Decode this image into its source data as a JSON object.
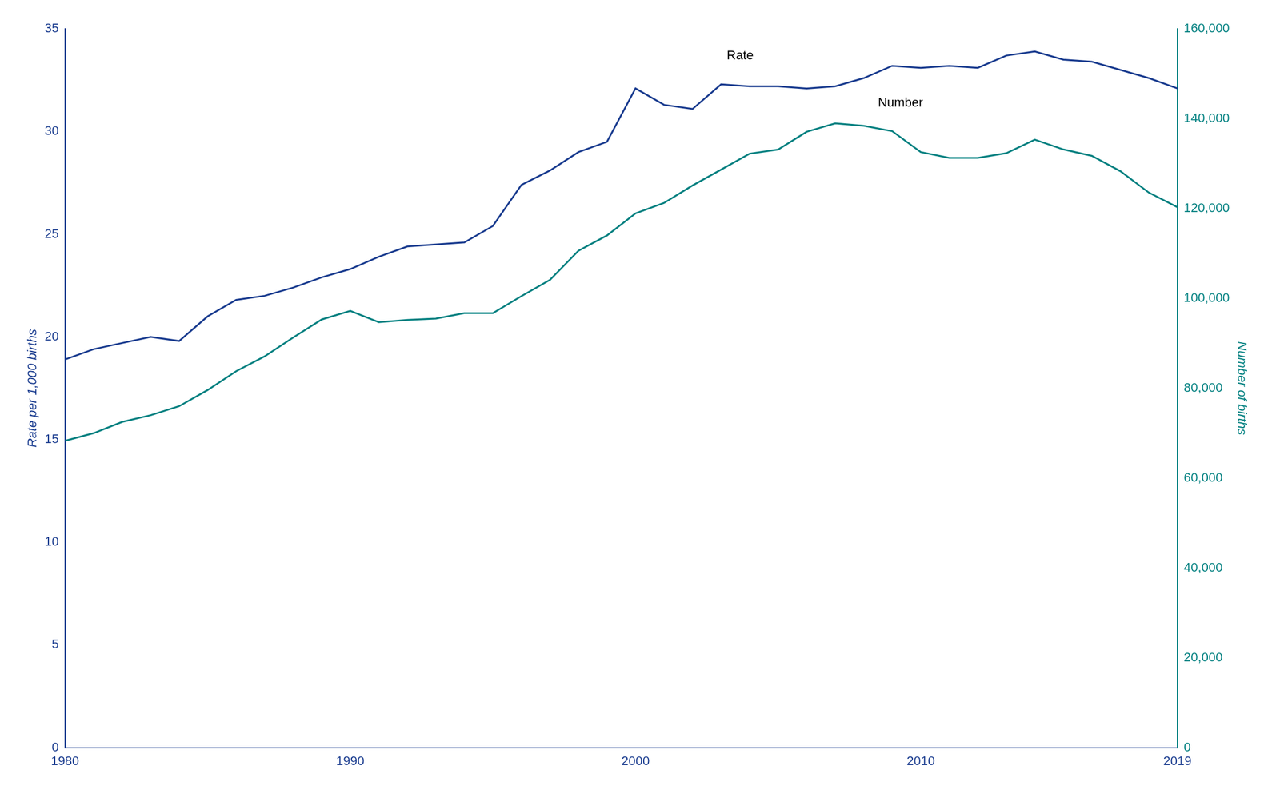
{
  "chart_data": {
    "type": "line",
    "ylabel": "Rate per 1,000 births",
    "y2label": "Number of births",
    "x": [
      1980,
      1981,
      1982,
      1983,
      1984,
      1985,
      1986,
      1987,
      1988,
      1989,
      1990,
      1991,
      1992,
      1993,
      1994,
      1995,
      1996,
      1997,
      1998,
      1999,
      2000,
      2001,
      2002,
      2003,
      2004,
      2005,
      2006,
      2007,
      2008,
      2009,
      2010,
      2011,
      2012,
      2013,
      2014,
      2015,
      2016,
      2017,
      2018,
      2019
    ],
    "series": [
      {
        "name": "Rate",
        "color": "#1a3c8f",
        "axis": "y",
        "values": [
          18.9,
          19.4,
          19.7,
          20.0,
          19.8,
          21.0,
          21.8,
          22.0,
          22.4,
          22.9,
          23.3,
          23.9,
          24.4,
          24.5,
          24.6,
          25.4,
          27.4,
          28.1,
          29.0,
          29.5,
          32.1,
          31.3,
          31.1,
          32.3,
          32.2,
          32.2,
          32.1,
          32.2,
          32.6,
          33.2,
          33.1,
          33.2,
          33.1,
          33.7,
          33.9,
          33.5,
          33.4,
          33.0,
          32.6,
          32.1
        ]
      },
      {
        "name": "Number",
        "color": "#008080",
        "axis": "y2",
        "values": [
          68300,
          70000,
          72500,
          74000,
          76000,
          79600,
          83800,
          87100,
          91300,
          95300,
          97200,
          94700,
          95200,
          95500,
          96700,
          96700,
          100500,
          104100,
          110600,
          114000,
          118916,
          121246,
          125134,
          128665,
          132219,
          133122,
          137085,
          138961,
          138427,
          137217,
          132562,
          131269,
          131269,
          132324,
          135336,
          133155,
          131723,
          128310,
          123536,
          120291
        ]
      }
    ],
    "xlim": [
      1980,
      2019
    ],
    "xticks": [
      1980,
      1990,
      2000,
      2010,
      2019
    ],
    "ylim": [
      0,
      35
    ],
    "yticks": [
      0,
      5,
      10,
      15,
      20,
      25,
      30,
      35
    ],
    "y2lim": [
      0,
      160000
    ],
    "y2ticks": [
      0,
      {
        "value": 20000,
        "label": "20,000"
      },
      {
        "value": 40000,
        "label": "40,000"
      },
      {
        "value": 60000,
        "label": "60,000"
      },
      {
        "value": 80000,
        "label": "80,000"
      },
      {
        "value": 100000,
        "label": "100,000"
      },
      {
        "value": 120000,
        "label": "120,000"
      },
      {
        "value": 140000,
        "label": "140,000"
      },
      {
        "value": 160000,
        "label": "160,000"
      }
    ],
    "annotations": [
      {
        "text": "Rate",
        "x": 2003.2,
        "y": 33.5
      },
      {
        "text": "Number",
        "x": 2008.5,
        "y": 31.2
      }
    ],
    "grid": false,
    "legend": false
  }
}
